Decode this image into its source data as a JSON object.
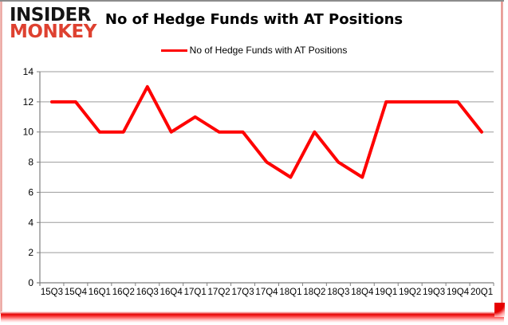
{
  "logo": {
    "line1": "INSIDER",
    "line2": "MONKEY"
  },
  "header": {
    "title": "No of Hedge Funds with AT Positions"
  },
  "legend": {
    "label": "No of Hedge Funds with AT Positions"
  },
  "colors": {
    "series": "#fe0000",
    "gridline": "#9b9b9b",
    "axis": "#808080",
    "logo_insider": "#151515",
    "logo_monkey": "#de4130",
    "border_top": "#8c8c8c",
    "border_side": "#e69a94",
    "bottom_glow": "#e60000"
  },
  "chart_data": {
    "type": "line",
    "title": "No of Hedge Funds with AT Positions",
    "categories": [
      "15Q3",
      "15Q4",
      "16Q1",
      "16Q2",
      "16Q3",
      "16Q4",
      "17Q1",
      "17Q2",
      "17Q3",
      "17Q4",
      "18Q1",
      "18Q2",
      "18Q3",
      "18Q4",
      "19Q1",
      "19Q2",
      "19Q3",
      "19Q4",
      "20Q1"
    ],
    "series": [
      {
        "name": "No of Hedge Funds with AT Positions",
        "color": "#fe0000",
        "values": [
          12,
          12,
          10,
          10,
          13,
          10,
          11,
          10,
          10,
          8,
          7,
          10,
          8,
          7,
          12,
          12,
          12,
          12,
          10
        ]
      }
    ],
    "xlabel": "",
    "ylabel": "",
    "ylim": [
      0,
      14
    ],
    "yticks": [
      0,
      2,
      4,
      6,
      8,
      10,
      12,
      14
    ],
    "grid": true,
    "legend_position": "top-center"
  }
}
